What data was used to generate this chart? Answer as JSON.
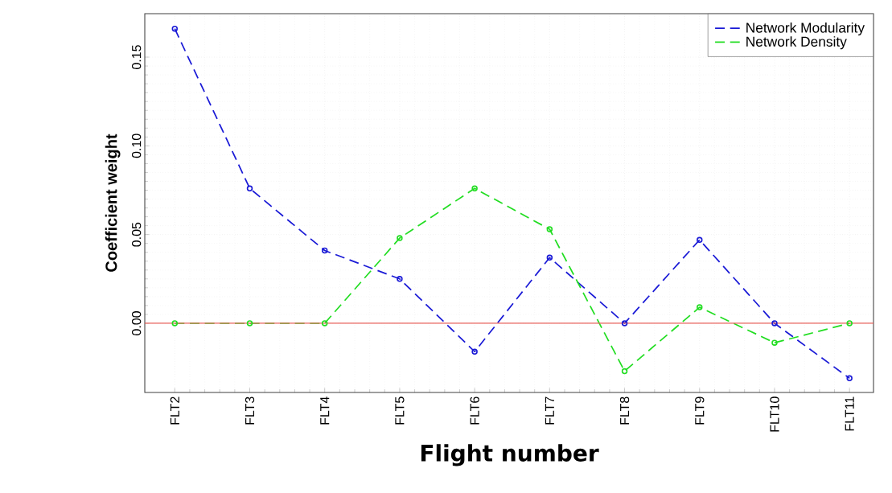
{
  "chart_data": {
    "type": "line",
    "xlabel": "Flight number",
    "ylabel": "Coefficient weight",
    "categories": [
      "FLT2",
      "FLT3",
      "FLT4",
      "FLT5",
      "FLT6",
      "FLT7",
      "FLT8",
      "FLT9",
      "FLT10",
      "FLT11"
    ],
    "series": [
      {
        "name": "Network Modularity",
        "color": "#1a1ad6",
        "values": [
          0.166,
          0.076,
          0.041,
          0.025,
          -0.016,
          0.037,
          0.0,
          0.047,
          0.0,
          -0.031
        ]
      },
      {
        "name": "Network Density",
        "color": "#22dd22",
        "values": [
          0.0,
          0.0,
          0.0,
          0.048,
          0.076,
          0.053,
          -0.027,
          0.009,
          -0.011,
          0.0
        ]
      }
    ],
    "ylim": [
      -0.039,
      0.1745
    ],
    "yticks": [
      {
        "value": 0,
        "label": "0.00"
      },
      {
        "value": 0.05,
        "label": "0.05"
      },
      {
        "value": 0.1,
        "label": "0.10"
      },
      {
        "value": 0.15,
        "label": "0.15"
      }
    ],
    "ref_lines": [
      {
        "axis": "y",
        "value": 0,
        "color": "#e8605a",
        "line_style": "solid"
      }
    ],
    "grid": true,
    "legend": "top right",
    "marker": "circle",
    "line_style": "dashed"
  }
}
